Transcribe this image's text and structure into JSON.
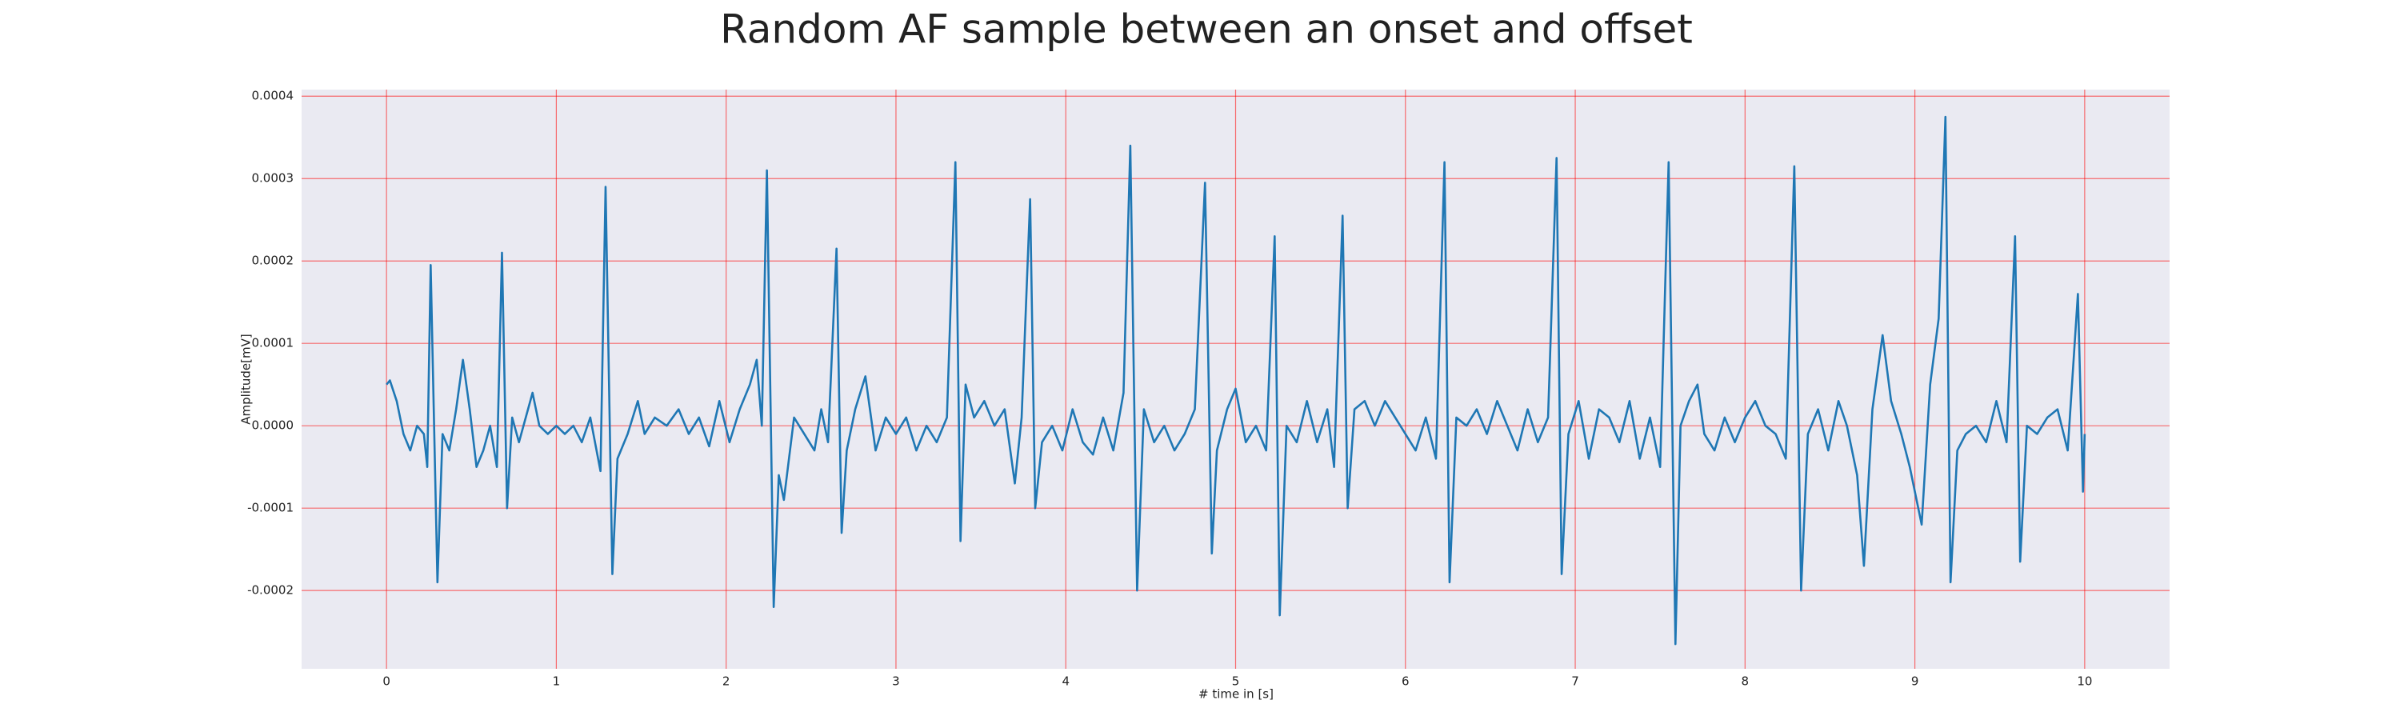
{
  "chart_data": {
    "type": "line",
    "title": "Random AF sample between an onset and offset",
    "x_label": "# time in [s]",
    "y_label": "Amplitude[mV]",
    "color": "#1f77b4",
    "grid": true,
    "xlim": [
      -0.5,
      10.5
    ],
    "ylim": [
      -0.000295,
      0.000408
    ],
    "xticks": [
      0,
      1,
      2,
      3,
      4,
      5,
      6,
      7,
      8,
      9,
      10
    ],
    "yticks": [
      0.0004,
      0.0003,
      0.0002,
      0.0001,
      {
        "value": 0,
        "label": "0.0000"
      },
      -0.0001,
      -0.0002
    ],
    "x": [
      0.0,
      0.02,
      0.06,
      0.1,
      0.14,
      0.18,
      0.22,
      0.24,
      0.26,
      0.3,
      0.33,
      0.37,
      0.41,
      0.45,
      0.49,
      0.53,
      0.57,
      0.61,
      0.65,
      0.68,
      0.71,
      0.74,
      0.78,
      0.82,
      0.86,
      0.9,
      0.95,
      1.0,
      1.05,
      1.1,
      1.15,
      1.2,
      1.26,
      1.29,
      1.33,
      1.36,
      1.42,
      1.48,
      1.52,
      1.58,
      1.65,
      1.72,
      1.78,
      1.84,
      1.9,
      1.96,
      2.02,
      2.08,
      2.14,
      2.18,
      2.21,
      2.24,
      2.28,
      2.31,
      2.34,
      2.4,
      2.46,
      2.52,
      2.56,
      2.6,
      2.65,
      2.68,
      2.71,
      2.76,
      2.82,
      2.88,
      2.94,
      3.0,
      3.06,
      3.12,
      3.18,
      3.24,
      3.3,
      3.35,
      3.38,
      3.41,
      3.46,
      3.52,
      3.58,
      3.64,
      3.7,
      3.74,
      3.79,
      3.82,
      3.86,
      3.92,
      3.98,
      4.04,
      4.1,
      4.16,
      4.22,
      4.28,
      4.34,
      4.38,
      4.42,
      4.46,
      4.52,
      4.58,
      4.64,
      4.7,
      4.76,
      4.82,
      4.86,
      4.89,
      4.95,
      5.0,
      5.06,
      5.12,
      5.18,
      5.23,
      5.26,
      5.3,
      5.36,
      5.42,
      5.48,
      5.54,
      5.58,
      5.63,
      5.66,
      5.7,
      5.76,
      5.82,
      5.88,
      5.94,
      6.0,
      6.06,
      6.12,
      6.18,
      6.23,
      6.26,
      6.3,
      6.36,
      6.42,
      6.48,
      6.54,
      6.6,
      6.66,
      6.72,
      6.78,
      6.84,
      6.89,
      6.92,
      6.96,
      7.02,
      7.08,
      7.14,
      7.2,
      7.26,
      7.32,
      7.38,
      7.44,
      7.5,
      7.55,
      7.59,
      7.62,
      7.67,
      7.72,
      7.76,
      7.82,
      7.88,
      7.94,
      8.0,
      8.06,
      8.12,
      8.18,
      8.24,
      8.29,
      8.33,
      8.37,
      8.43,
      8.49,
      8.55,
      8.6,
      8.66,
      8.7,
      8.75,
      8.81,
      8.86,
      8.92,
      8.97,
      9.04,
      9.09,
      9.14,
      9.18,
      9.21,
      9.25,
      9.3,
      9.36,
      9.42,
      9.48,
      9.54,
      9.59,
      9.62,
      9.66,
      9.72,
      9.78,
      9.84,
      9.9,
      9.96,
      9.99,
      10.0
    ],
    "values": [
      5e-05,
      5.5e-05,
      3e-05,
      -1e-05,
      -3e-05,
      0.0,
      -1e-05,
      -5e-05,
      0.000195,
      -0.00019,
      -1e-05,
      -3e-05,
      2e-05,
      8e-05,
      2e-05,
      -5e-05,
      -3e-05,
      0.0,
      -5e-05,
      0.00021,
      -0.0001,
      1e-05,
      -2e-05,
      1e-05,
      4e-05,
      0.0,
      -1e-05,
      0.0,
      -1e-05,
      0.0,
      -2e-05,
      1e-05,
      -5.5e-05,
      0.00029,
      -0.00018,
      -4e-05,
      -1e-05,
      3e-05,
      -1e-05,
      1e-05,
      0.0,
      2e-05,
      -1e-05,
      1e-05,
      -2.5e-05,
      3e-05,
      -2e-05,
      2e-05,
      5e-05,
      8e-05,
      0.0,
      0.00031,
      -0.00022,
      -6e-05,
      -9e-05,
      1e-05,
      -1e-05,
      -3e-05,
      2e-05,
      -2e-05,
      0.000215,
      -0.00013,
      -3e-05,
      2e-05,
      6e-05,
      -3e-05,
      1e-05,
      -1e-05,
      1e-05,
      -3e-05,
      0.0,
      -2e-05,
      1e-05,
      0.00032,
      -0.00014,
      5e-05,
      1e-05,
      3e-05,
      0.0,
      2e-05,
      -7e-05,
      1e-05,
      0.000275,
      -0.0001,
      -2e-05,
      0.0,
      -3e-05,
      2e-05,
      -2e-05,
      -3.5e-05,
      1e-05,
      -3e-05,
      4e-05,
      0.00034,
      -0.0002,
      2e-05,
      -2e-05,
      0.0,
      -3e-05,
      -1e-05,
      2e-05,
      0.000295,
      -0.000155,
      -3e-05,
      2e-05,
      4.5e-05,
      -2e-05,
      0.0,
      -3e-05,
      0.00023,
      -0.00023,
      0.0,
      -2e-05,
      3e-05,
      -2e-05,
      2e-05,
      -5e-05,
      0.000255,
      -0.0001,
      2e-05,
      3e-05,
      0.0,
      3e-05,
      1e-05,
      -1e-05,
      -3e-05,
      1e-05,
      -4e-05,
      0.00032,
      -0.00019,
      1e-05,
      0.0,
      2e-05,
      -1e-05,
      3e-05,
      0.0,
      -3e-05,
      2e-05,
      -2e-05,
      1e-05,
      0.000325,
      -0.00018,
      -1e-05,
      3e-05,
      -4e-05,
      2e-05,
      1e-05,
      -2e-05,
      3e-05,
      -4e-05,
      1e-05,
      -5e-05,
      0.00032,
      -0.000265,
      0.0,
      3e-05,
      5e-05,
      -1e-05,
      -3e-05,
      1e-05,
      -2e-05,
      1e-05,
      3e-05,
      0.0,
      -1e-05,
      -4e-05,
      0.000315,
      -0.0002,
      -1e-05,
      2e-05,
      -3e-05,
      3e-05,
      0.0,
      -6e-05,
      -0.00017,
      2e-05,
      0.00011,
      3e-05,
      -1e-05,
      -5e-05,
      -0.00012,
      5e-05,
      0.00013,
      0.000375,
      -0.00019,
      -3e-05,
      -1e-05,
      0.0,
      -2e-05,
      3e-05,
      -2e-05,
      0.00023,
      -0.000165,
      0.0,
      -1e-05,
      1e-05,
      2e-05,
      -3e-05,
      0.00016,
      -8e-05,
      -1e-05
    ]
  }
}
